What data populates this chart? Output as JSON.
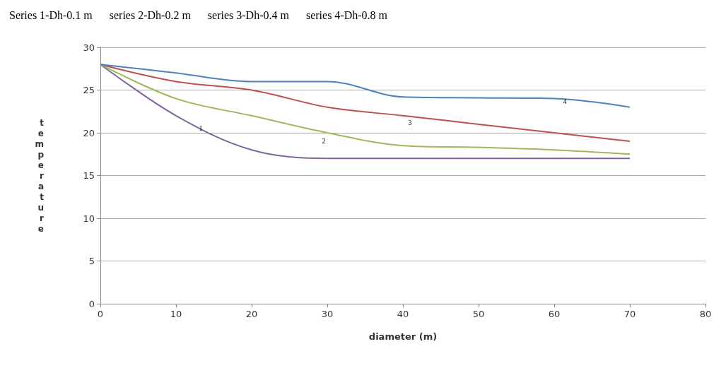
{
  "chart_data": {
    "type": "line",
    "title": "Series 1-Dh-0.1 m      series 2-Dh-0.2 m      series 3-Dh-0.4 m      series 4-Dh-0.8 m",
    "xlabel": "diameter (m)",
    "ylabel": "temperature",
    "x": [
      0,
      10,
      20,
      30,
      40,
      50,
      60,
      70
    ],
    "series": [
      {
        "name": "1",
        "color": "#8064a2",
        "values": [
          28,
          22,
          18,
          17,
          17,
          17,
          17,
          17
        ]
      },
      {
        "name": "2",
        "color": "#9bbb59",
        "values": [
          28,
          24,
          22,
          20,
          18.5,
          18.3,
          18,
          17.5
        ]
      },
      {
        "name": "3",
        "color": "#c0504d",
        "values": [
          28,
          26,
          25,
          23,
          22,
          21,
          20,
          19
        ]
      },
      {
        "name": "4",
        "color": "#4f81bd",
        "values": [
          28,
          27,
          26,
          26,
          24.2,
          24.1,
          24,
          23
        ]
      }
    ],
    "xlim": [
      0,
      80
    ],
    "xticks": [
      0,
      10,
      20,
      30,
      40,
      50,
      60,
      70,
      80
    ],
    "ylim": [
      0,
      30
    ],
    "yticks": [
      0,
      5,
      10,
      15,
      20,
      25,
      30
    ],
    "grid": "y",
    "marker": "none",
    "line_style": "solid"
  }
}
